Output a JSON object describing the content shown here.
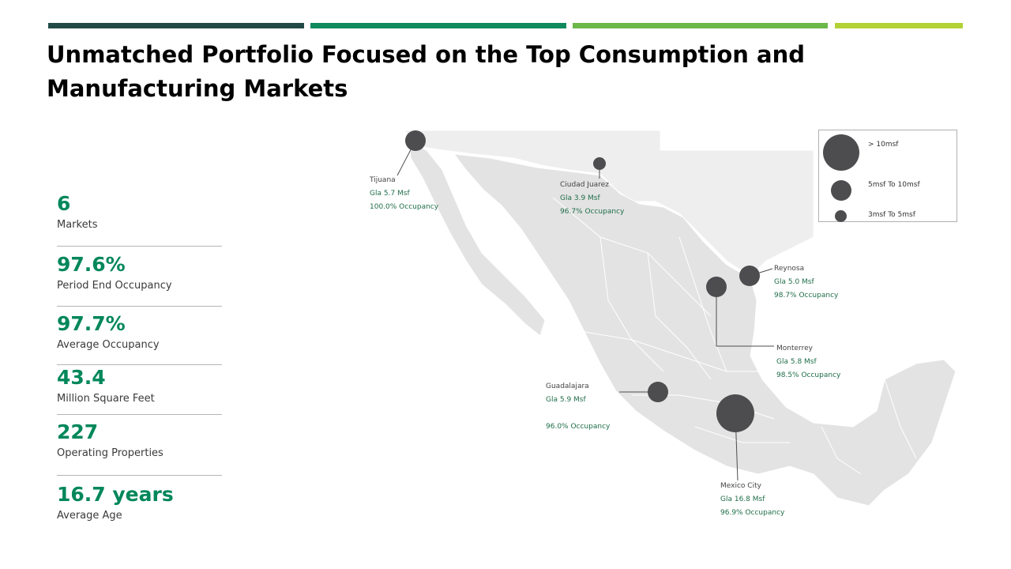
{
  "colors": {
    "bar1": "#214a47",
    "bar2": "#0e8a5d",
    "bar3": "#6cb84a",
    "bar4": "#b2d235",
    "accent": "#00875a",
    "marker": "#4d4d4f",
    "land": "#e3e3e3",
    "land_far": "#eeeeee"
  },
  "title": {
    "line1": "Unmatched Portfolio Focused on the Top Consumption and",
    "line2": "Manufacturing  Markets"
  },
  "stats": [
    {
      "value": "6",
      "label": "Markets"
    },
    {
      "value": "97.6%",
      "label": "Period End Occupancy"
    },
    {
      "value": "97.7%",
      "label": "Average Occupancy"
    },
    {
      "value": "43.4",
      "label": "Million Square Feet"
    },
    {
      "value": "227",
      "label": "Operating Properties"
    },
    {
      "value": "16.7 years",
      "label": "Average Age"
    }
  ],
  "markets": [
    {
      "city": "Tijuana",
      "gla": "Gla 5.7 Msf",
      "occupancy": "100.0% Occupancy",
      "size_class": "5msf To 10msf"
    },
    {
      "city": "Ciudad Juarez",
      "gla": "Gla 3.9 Msf",
      "occupancy": "96.7% Occupancy",
      "size_class": "3msf To 5msf"
    },
    {
      "city": "Reynosa",
      "gla": "Gla 5.0 Msf",
      "occupancy": "98.7% Occupancy",
      "size_class": "5msf To 10msf"
    },
    {
      "city": "Monterrey",
      "gla": "Gla 5.8 Msf",
      "occupancy": "98.5% Occupancy",
      "size_class": "5msf To 10msf"
    },
    {
      "city": "Guadalajara",
      "gla": "Gla 5.9 Msf",
      "occupancy": "96.0% Occupancy",
      "size_class": "5msf To 10msf"
    },
    {
      "city": "Mexico City",
      "gla": "Gla 16.8 Msf",
      "occupancy": "96.9% Occupancy",
      "size_class": "> 10msf"
    }
  ],
  "legend": {
    "items": [
      {
        "label": "> 10msf",
        "icon": "large-circle"
      },
      {
        "label": "5msf To 10msf",
        "icon": "medium-circle"
      },
      {
        "label": "3msf To 5msf",
        "icon": "small-circle"
      }
    ]
  }
}
